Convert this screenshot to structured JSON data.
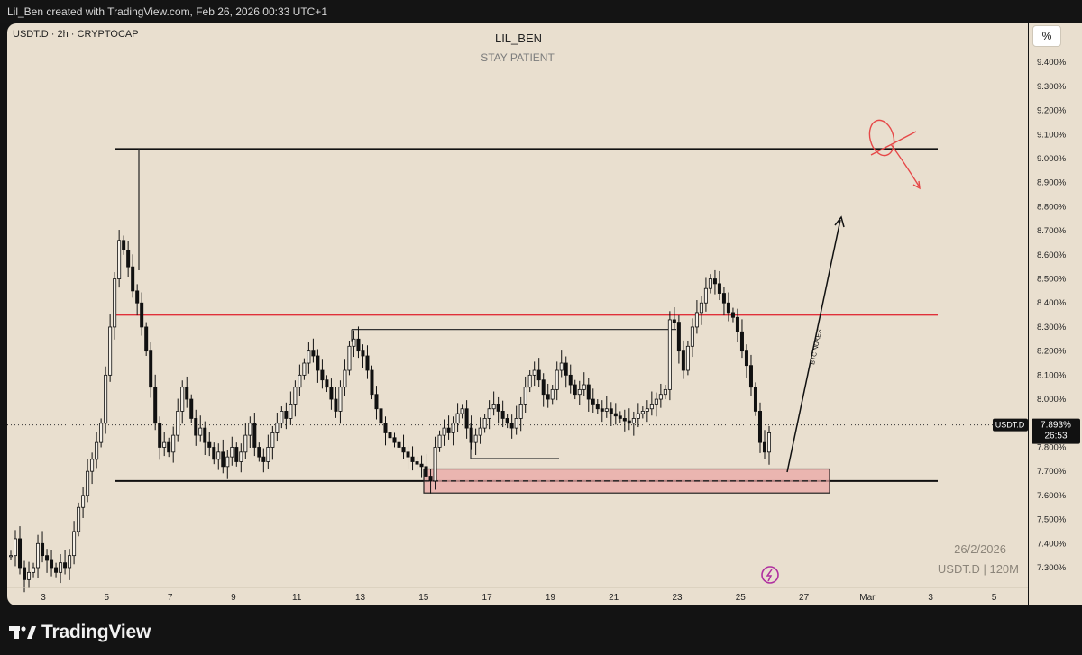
{
  "header": {
    "attribution": "Lil_Ben created with TradingView.com, Feb 26, 2026 00:33 UTC+1"
  },
  "footer": {
    "brand": "TradingView"
  },
  "chart_data": {
    "type": "candlestick",
    "symbol_label": "USDT.D · 2h · CRYPTOCAP",
    "title": "LIL_BEN",
    "subtitle": "STAY PATIENT",
    "unit_button": "%",
    "y_axis": {
      "ylim": [
        7.2,
        9.55
      ],
      "ticks": [
        "9.400%",
        "9.300%",
        "9.200%",
        "9.100%",
        "9.000%",
        "8.900%",
        "8.800%",
        "8.700%",
        "8.600%",
        "8.500%",
        "8.400%",
        "8.300%",
        "8.200%",
        "8.100%",
        "8.000%",
        "7.900%",
        "7.800%",
        "7.700%",
        "7.600%",
        "7.500%",
        "7.400%",
        "7.300%"
      ],
      "tick_values": [
        9.4,
        9.3,
        9.2,
        9.1,
        9.0,
        8.9,
        8.8,
        8.7,
        8.6,
        8.5,
        8.4,
        8.3,
        8.2,
        8.1,
        8.0,
        7.9,
        7.8,
        7.7,
        7.6,
        7.5,
        7.4,
        7.3
      ]
    },
    "x_axis": {
      "ticks": [
        "3",
        "5",
        "7",
        "9",
        "11",
        "13",
        "15",
        "17",
        "19",
        "21",
        "23",
        "25",
        "27",
        "Mar",
        "3",
        "5"
      ]
    },
    "price_label": {
      "symbol": "USDT.D",
      "value": "7.893%",
      "countdown": "26:53",
      "price": 7.893
    },
    "watermark": {
      "date": "26/2/2026",
      "info": "USDT.D | 120M"
    },
    "annotation": "BTC NUKES",
    "levels": {
      "top_resistance": 9.04,
      "mid_resistance": 8.35,
      "support": 7.66,
      "range_high": 8.29,
      "zone_top": 7.71,
      "zone_bottom": 7.61
    },
    "series": [
      {
        "name": "USDT.D",
        "values": [
          7.35,
          7.42,
          7.3,
          7.25,
          7.28,
          7.3,
          7.4,
          7.35,
          7.33,
          7.3,
          7.28,
          7.32,
          7.3,
          7.35,
          7.45,
          7.55,
          7.6,
          7.7,
          7.75,
          7.82,
          7.9,
          8.1,
          8.3,
          8.5,
          8.66,
          8.62,
          8.55,
          8.45,
          8.4,
          8.3,
          8.2,
          8.05,
          7.9,
          7.8,
          7.82,
          7.78,
          7.85,
          7.95,
          8.05,
          8.0,
          7.92,
          7.85,
          7.88,
          7.82,
          7.8,
          7.75,
          7.78,
          7.72,
          7.76,
          7.8,
          7.74,
          7.78,
          7.85,
          7.9,
          7.8,
          7.76,
          7.74,
          7.8,
          7.86,
          7.9,
          7.95,
          7.92,
          7.98,
          8.05,
          8.1,
          8.15,
          8.2,
          8.18,
          8.12,
          8.08,
          8.05,
          8.0,
          7.95,
          8.05,
          8.12,
          8.22,
          8.25,
          8.2,
          8.18,
          8.12,
          8.02,
          7.96,
          7.9,
          7.86,
          7.84,
          7.82,
          7.8,
          7.78,
          7.76,
          7.74,
          7.73,
          7.72,
          7.68,
          7.66,
          7.8,
          7.85,
          7.88,
          7.86,
          7.9,
          7.94,
          7.96,
          7.88,
          7.82,
          7.85,
          7.88,
          7.92,
          7.96,
          7.98,
          7.95,
          7.92,
          7.9,
          7.88,
          7.92,
          7.98,
          8.05,
          8.1,
          8.12,
          8.08,
          8.02,
          8.0,
          8.04,
          8.12,
          8.15,
          8.1,
          8.06,
          8.02,
          8.04,
          8.06,
          8.0,
          7.98,
          7.96,
          7.95,
          7.96,
          7.94,
          7.93,
          7.92,
          7.91,
          7.9,
          7.92,
          7.94,
          7.95,
          7.96,
          7.98,
          8.0,
          8.02,
          8.04,
          8.33,
          8.32,
          8.2,
          8.12,
          8.22,
          8.3,
          8.36,
          8.4,
          8.46,
          8.5,
          8.48,
          8.44,
          8.4,
          8.36,
          8.34,
          8.28,
          8.2,
          8.14,
          8.05,
          7.95,
          7.82,
          7.78,
          7.86
        ]
      }
    ]
  }
}
